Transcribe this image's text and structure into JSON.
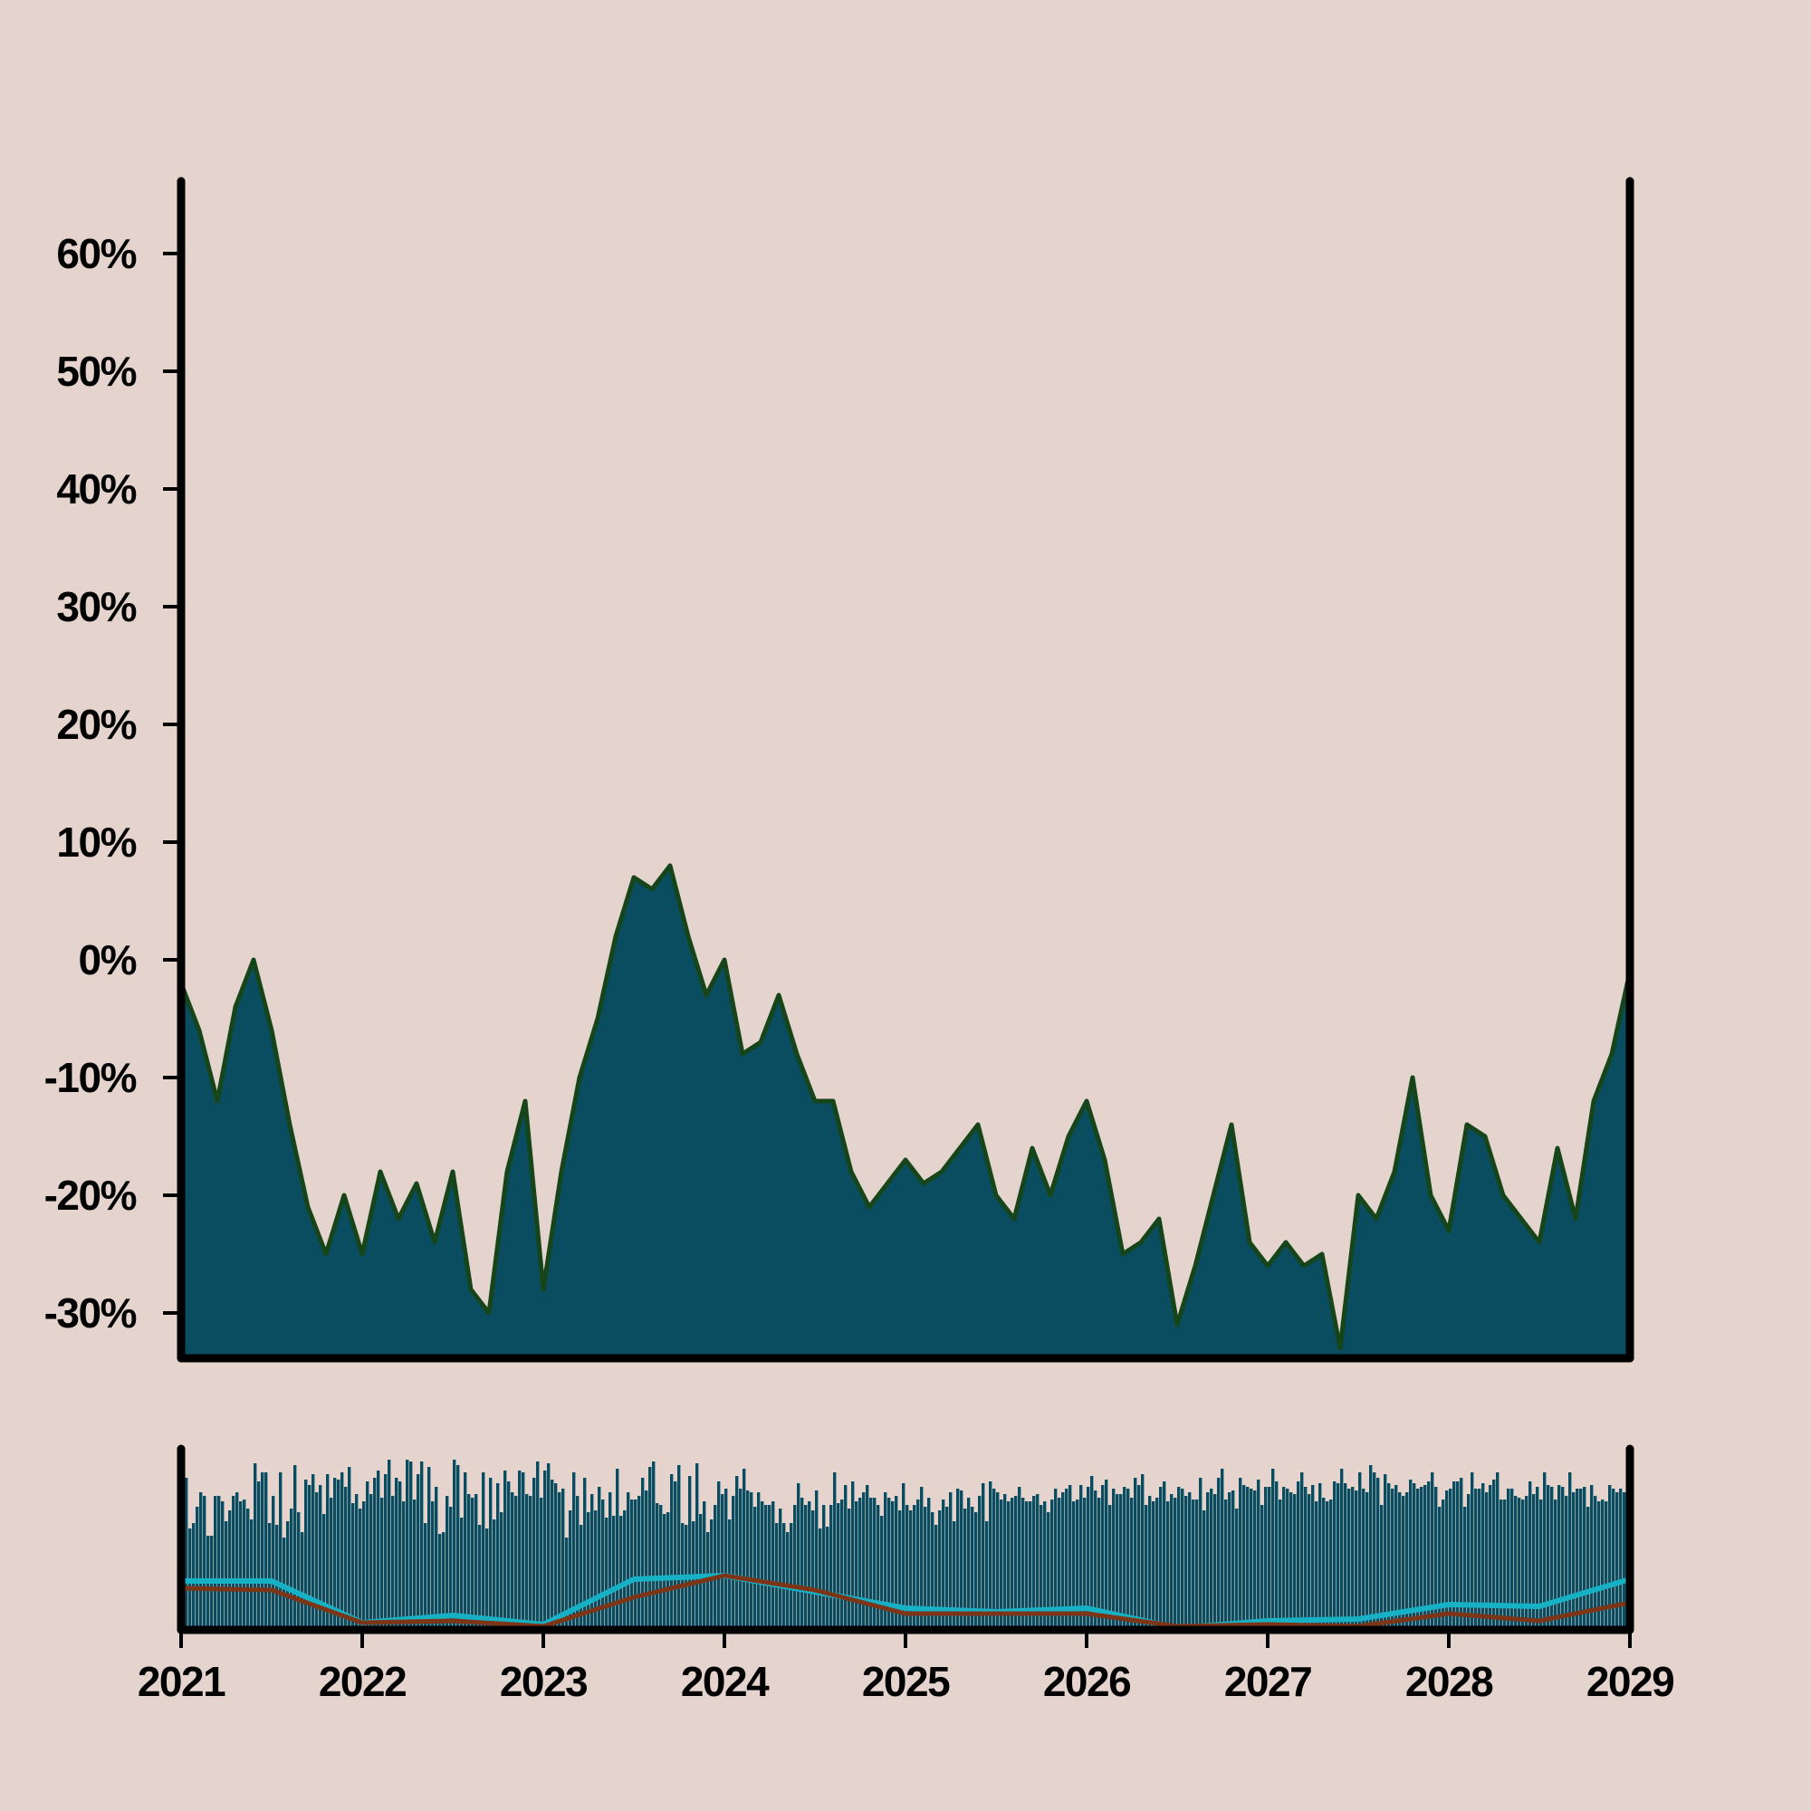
{
  "chart_data": [
    {
      "type": "area",
      "panel": "main",
      "title": "",
      "xlabel": "",
      "ylabel": "",
      "ylim": [
        -34,
        66
      ],
      "y_ticks": [
        60,
        50,
        40,
        30,
        20,
        10,
        0,
        -10,
        -20,
        -30
      ],
      "y_tick_labels": [
        "60%",
        "50%",
        "40%",
        "30%",
        "20%",
        "10%",
        "0%",
        "-10%",
        "-20%",
        "-30%"
      ],
      "grid": false,
      "series": [
        {
          "x": [
            2021.0,
            2021.1,
            2021.2,
            2021.3,
            2021.4,
            2021.5,
            2021.6,
            2021.7,
            2021.8,
            2021.9,
            2022.0,
            2022.1,
            2022.2,
            2022.3,
            2022.4,
            2022.5,
            2022.6,
            2022.7,
            2022.8,
            2022.9,
            2023.0,
            2023.1,
            2023.2,
            2023.3,
            2023.4,
            2023.5,
            2023.6,
            2023.7,
            2023.8,
            2023.9,
            2024.0,
            2024.1,
            2024.2,
            2024.3,
            2024.4,
            2024.5,
            2024.6,
            2024.7,
            2024.8,
            2024.9,
            2025.0,
            2025.1,
            2025.2,
            2025.3,
            2025.4,
            2025.5,
            2025.6,
            2025.7,
            2025.8,
            2025.9,
            2026.0,
            2026.1,
            2026.2,
            2026.3,
            2026.4,
            2026.5,
            2026.6,
            2026.7,
            2026.8,
            2026.9,
            2027.0,
            2027.1,
            2027.2,
            2027.3,
            2027.4,
            2027.5,
            2027.6,
            2027.7,
            2027.8,
            2027.9,
            2028.0,
            2028.1,
            2028.2,
            2028.3,
            2028.4,
            2028.5,
            2028.6,
            2028.7,
            2028.8,
            2028.9,
            2029.0
          ],
          "values": [
            -2,
            -6,
            -12,
            -4,
            0,
            -6,
            -14,
            -21,
            -25,
            -20,
            -25,
            -18,
            -22,
            -19,
            -24,
            -18,
            -28,
            -30,
            -18,
            -12,
            -28,
            -18,
            -10,
            -5,
            2,
            7,
            6,
            8,
            2,
            -3,
            0,
            -8,
            -7,
            -3,
            -8,
            -12,
            -12,
            -18,
            -21,
            -19,
            -17,
            -19,
            -18,
            -16,
            -14,
            -20,
            -22,
            -16,
            -20,
            -15,
            -12,
            -17,
            -25,
            -24,
            -22,
            -31,
            -26,
            -20,
            -14,
            -24,
            -26,
            -24,
            -26,
            -25,
            -33,
            -20,
            -22,
            -18,
            -10,
            -20,
            -23,
            -14,
            -15,
            -20,
            -22,
            -24,
            -16,
            -22,
            -12,
            -8,
            -1
          ]
        }
      ]
    },
    {
      "type": "bar",
      "panel": "secondary",
      "title": "",
      "xlabel": "",
      "ylabel": "",
      "ylim": [
        0,
        100
      ],
      "x_ticks": [
        2021,
        2022,
        2023,
        2024,
        2025,
        2026,
        2027,
        2028,
        2029
      ],
      "x_tick_labels": [
        "2021",
        "2022",
        "2023",
        "2024",
        "2025",
        "2026",
        "2027",
        "2028",
        "2029"
      ],
      "grid": false,
      "bars": {
        "x_start": 2021.0,
        "x_step": 0.02,
        "values": [
          62,
          84,
          56,
          59,
          68,
          76,
          74,
          52,
          52,
          74,
          74,
          71,
          60,
          66,
          74,
          76,
          71,
          72,
          67,
          61,
          92,
          82,
          87,
          87,
          59,
          74,
          58,
          87,
          51,
          60,
          67,
          91,
          65,
          54,
          83,
          80,
          86,
          76,
          80,
          64,
          86,
          73,
          84,
          83,
          87,
          79,
          90,
          70,
          75,
          67,
          71,
          82,
          75,
          84,
          88,
          73,
          86,
          94,
          74,
          84,
          82,
          71,
          94,
          93,
          72,
          86,
          93,
          59,
          90,
          71,
          79,
          53,
          54,
          74,
          68,
          94,
          91,
          62,
          87,
          75,
          73,
          75,
          58,
          87,
          56,
          84,
          61,
          81,
          65,
          88,
          82,
          76,
          74,
          88,
          87,
          75,
          74,
          84,
          93,
          73,
          88,
          92,
          83,
          81,
          76,
          78,
          51,
          66,
          87,
          74,
          58,
          84,
          65,
          75,
          66,
          79,
          72,
          62,
          76,
          63,
          89,
          63,
          66,
          76,
          72,
          72,
          74,
          84,
          77,
          90,
          93,
          70,
          69,
          64,
          65,
          86,
          82,
          91,
          59,
          58,
          85,
          60,
          92,
          64,
          71,
          54,
          61,
          69,
          82,
          75,
          78,
          61,
          74,
          85,
          78,
          89,
          77,
          76,
          68,
          76,
          71,
          69,
          69,
          71,
          59,
          67,
          59,
          54,
          59,
          69,
          81,
          73,
          69,
          71,
          66,
          77,
          56,
          69,
          57,
          69,
          87,
          70,
          72,
          80,
          67,
          82,
          71,
          73,
          76,
          80,
          73,
          73,
          69,
          63,
          76,
          73,
          71,
          74,
          66,
          81,
          69,
          66,
          69,
          72,
          79,
          68,
          73,
          65,
          58,
          66,
          72,
          68,
          76,
          60,
          78,
          77,
          67,
          73,
          68,
          65,
          74,
          81,
          60,
          82,
          78,
          76,
          72,
          75,
          71,
          73,
          74,
          79,
          73,
          71,
          71,
          74,
          75,
          69,
          71,
          65,
          72,
          78,
          73,
          76,
          78,
          80,
          71,
          72,
          80,
          73,
          79,
          85,
          77,
          73,
          80,
          83,
          69,
          78,
          75,
          75,
          79,
          78,
          73,
          84,
          80,
          86,
          69,
          74,
          71,
          73,
          79,
          82,
          71,
          75,
          73,
          79,
          78,
          74,
          76,
          72,
          72,
          84,
          66,
          76,
          78,
          75,
          84,
          89,
          72,
          76,
          77,
          67,
          84,
          80,
          79,
          78,
          77,
          83,
          69,
          79,
          79,
          89,
          82,
          72,
          79,
          78,
          76,
          75,
          82,
          87,
          79,
          75,
          80,
          71,
          81,
          73,
          71,
          72,
          82,
          81,
          89,
          81,
          78,
          79,
          77,
          87,
          78,
          76,
          91,
          87,
          84,
          69,
          86,
          81,
          78,
          80,
          76,
          74,
          76,
          83,
          81,
          78,
          79,
          80,
          82,
          87,
          79,
          68,
          72,
          77,
          78,
          82,
          82,
          84,
          68,
          75,
          87,
          78,
          78,
          81,
          76,
          80,
          83,
          87,
          72,
          72,
          78,
          78,
          74,
          73,
          72,
          74,
          82,
          75,
          79,
          72,
          87,
          80,
          79,
          72,
          80,
          79,
          74,
          87,
          76,
          78,
          78,
          79,
          68,
          80,
          74,
          71,
          72,
          71,
          80,
          78,
          76,
          78,
          76,
          71,
          80,
          73,
          72,
          64,
          68,
          78,
          65,
          74,
          70
        ]
      },
      "series": [
        {
          "name": "",
          "color": "#17b1c6",
          "x": [
            2021.0,
            2021.5,
            2022.0,
            2022.5,
            2023.0,
            2023.5,
            2024.0,
            2024.5,
            2025.0,
            2025.5,
            2026.0,
            2026.5,
            2027.0,
            2027.5,
            2028.0,
            2028.5,
            2029.0
          ],
          "values": [
            27,
            27,
            4,
            8,
            3,
            28,
            30,
            21,
            12,
            10,
            12,
            1,
            5,
            6,
            14,
            13,
            28
          ]
        },
        {
          "name": "",
          "color": "#7d3518",
          "x": [
            2021.0,
            2021.5,
            2022.0,
            2022.5,
            2023.0,
            2023.5,
            2024.0,
            2024.5,
            2025.0,
            2025.5,
            2026.0,
            2026.5,
            2027.0,
            2027.5,
            2028.0,
            2028.5,
            2029.0
          ],
          "values": [
            23,
            22,
            4,
            5,
            2,
            18,
            30,
            22,
            9,
            9,
            9,
            2,
            3,
            2,
            9,
            5,
            15
          ]
        }
      ]
    }
  ],
  "colors": {
    "background": "#e4d4cd",
    "area_fill": "#0a4c60",
    "area_line": "#17451a",
    "bars": "#0a4c60",
    "spines": "#000000"
  }
}
